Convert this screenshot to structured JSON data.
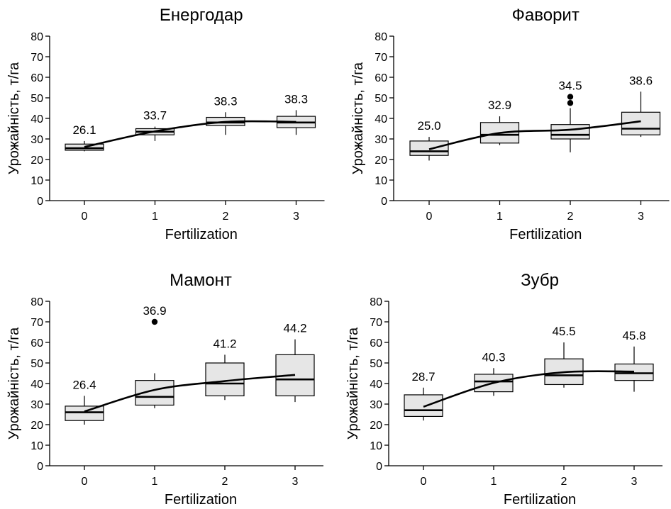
{
  "chart_data": [
    {
      "type": "box",
      "title": "Енергодар",
      "xlabel": "Fertilization",
      "ylabel": "Урожайність, т/га",
      "categories": [
        "0",
        "1",
        "2",
        "3"
      ],
      "ylim": [
        0,
        80
      ],
      "yticks": [
        "0",
        "10",
        "20",
        "30",
        "40",
        "50",
        "60",
        "70",
        "80"
      ],
      "means": [
        "26.1",
        "33.7",
        "38.3",
        "38.3"
      ],
      "boxes": [
        {
          "whisker_low": 24,
          "q1": 24.5,
          "median": 25.5,
          "q3": 27.5,
          "whisker_high": 29,
          "outliers": []
        },
        {
          "whisker_low": 29,
          "q1": 32,
          "median": 33.5,
          "q3": 35,
          "whisker_high": 36,
          "outliers": []
        },
        {
          "whisker_low": 32,
          "q1": 36.5,
          "median": 38,
          "q3": 40.5,
          "whisker_high": 43,
          "outliers": []
        },
        {
          "whisker_low": 32,
          "q1": 35.5,
          "median": 38,
          "q3": 41,
          "whisker_high": 44,
          "outliers": []
        }
      ],
      "trend": [
        26.1,
        33.7,
        38.3,
        38.3
      ]
    },
    {
      "type": "box",
      "title": "Фаворит",
      "xlabel": "Fertilization",
      "ylabel": "Урожайність, т/га",
      "categories": [
        "0",
        "1",
        "2",
        "3"
      ],
      "ylim": [
        0,
        80
      ],
      "yticks": [
        "0",
        "10",
        "20",
        "30",
        "40",
        "50",
        "60",
        "70",
        "80"
      ],
      "means": [
        "25.0",
        "32.9",
        "34.5",
        "38.6"
      ],
      "boxes": [
        {
          "whisker_low": 19.5,
          "q1": 22,
          "median": 24,
          "q3": 29,
          "whisker_high": 31,
          "outliers": []
        },
        {
          "whisker_low": 27,
          "q1": 28,
          "median": 32,
          "q3": 38,
          "whisker_high": 41,
          "outliers": []
        },
        {
          "whisker_low": 23.5,
          "q1": 30,
          "median": 32,
          "q3": 37,
          "whisker_high": 45,
          "outliers": [
            47.5,
            50.5
          ]
        },
        {
          "whisker_low": 31,
          "q1": 32,
          "median": 35,
          "q3": 43,
          "whisker_high": 53,
          "outliers": []
        }
      ],
      "trend": [
        25.0,
        32.9,
        34.5,
        38.6
      ]
    },
    {
      "type": "box",
      "title": "Мамонт",
      "xlabel": "Fertilization",
      "ylabel": "Урожайність, т/га",
      "categories": [
        "0",
        "1",
        "2",
        "3"
      ],
      "ylim": [
        0,
        80
      ],
      "yticks": [
        "0",
        "10",
        "20",
        "30",
        "40",
        "50",
        "60",
        "70",
        "80"
      ],
      "means": [
        "26.4",
        "36.9",
        "41.2",
        "44.2"
      ],
      "boxes": [
        {
          "whisker_low": 20,
          "q1": 22,
          "median": 26,
          "q3": 29,
          "whisker_high": 34,
          "outliers": []
        },
        {
          "whisker_low": 28,
          "q1": 29.5,
          "median": 33.5,
          "q3": 41.5,
          "whisker_high": 45,
          "outliers": [
            70
          ]
        },
        {
          "whisker_low": 32,
          "q1": 34,
          "median": 40,
          "q3": 50,
          "whisker_high": 54,
          "outliers": []
        },
        {
          "whisker_low": 31,
          "q1": 34,
          "median": 42,
          "q3": 54,
          "whisker_high": 61.5,
          "outliers": []
        }
      ],
      "trend": [
        26.4,
        36.9,
        41.2,
        44.2
      ]
    },
    {
      "type": "box",
      "title": "Зубр",
      "xlabel": "Fertilization",
      "ylabel": "Урожайність, т/га",
      "categories": [
        "0",
        "1",
        "2",
        "3"
      ],
      "ylim": [
        0,
        80
      ],
      "yticks": [
        "0",
        "10",
        "20",
        "30",
        "40",
        "50",
        "60",
        "70",
        "80"
      ],
      "means": [
        "28.7",
        "40.3",
        "45.5",
        "45.8"
      ],
      "boxes": [
        {
          "whisker_low": 22,
          "q1": 24,
          "median": 27,
          "q3": 34.5,
          "whisker_high": 38,
          "outliers": []
        },
        {
          "whisker_low": 34,
          "q1": 36,
          "median": 41,
          "q3": 44.5,
          "whisker_high": 47.5,
          "outliers": []
        },
        {
          "whisker_low": 38,
          "q1": 39.5,
          "median": 44,
          "q3": 52,
          "whisker_high": 60,
          "outliers": []
        },
        {
          "whisker_low": 36,
          "q1": 41.5,
          "median": 45,
          "q3": 49.5,
          "whisker_high": 58,
          "outliers": []
        }
      ],
      "trend": [
        28.7,
        40.3,
        45.5,
        45.8
      ]
    }
  ]
}
